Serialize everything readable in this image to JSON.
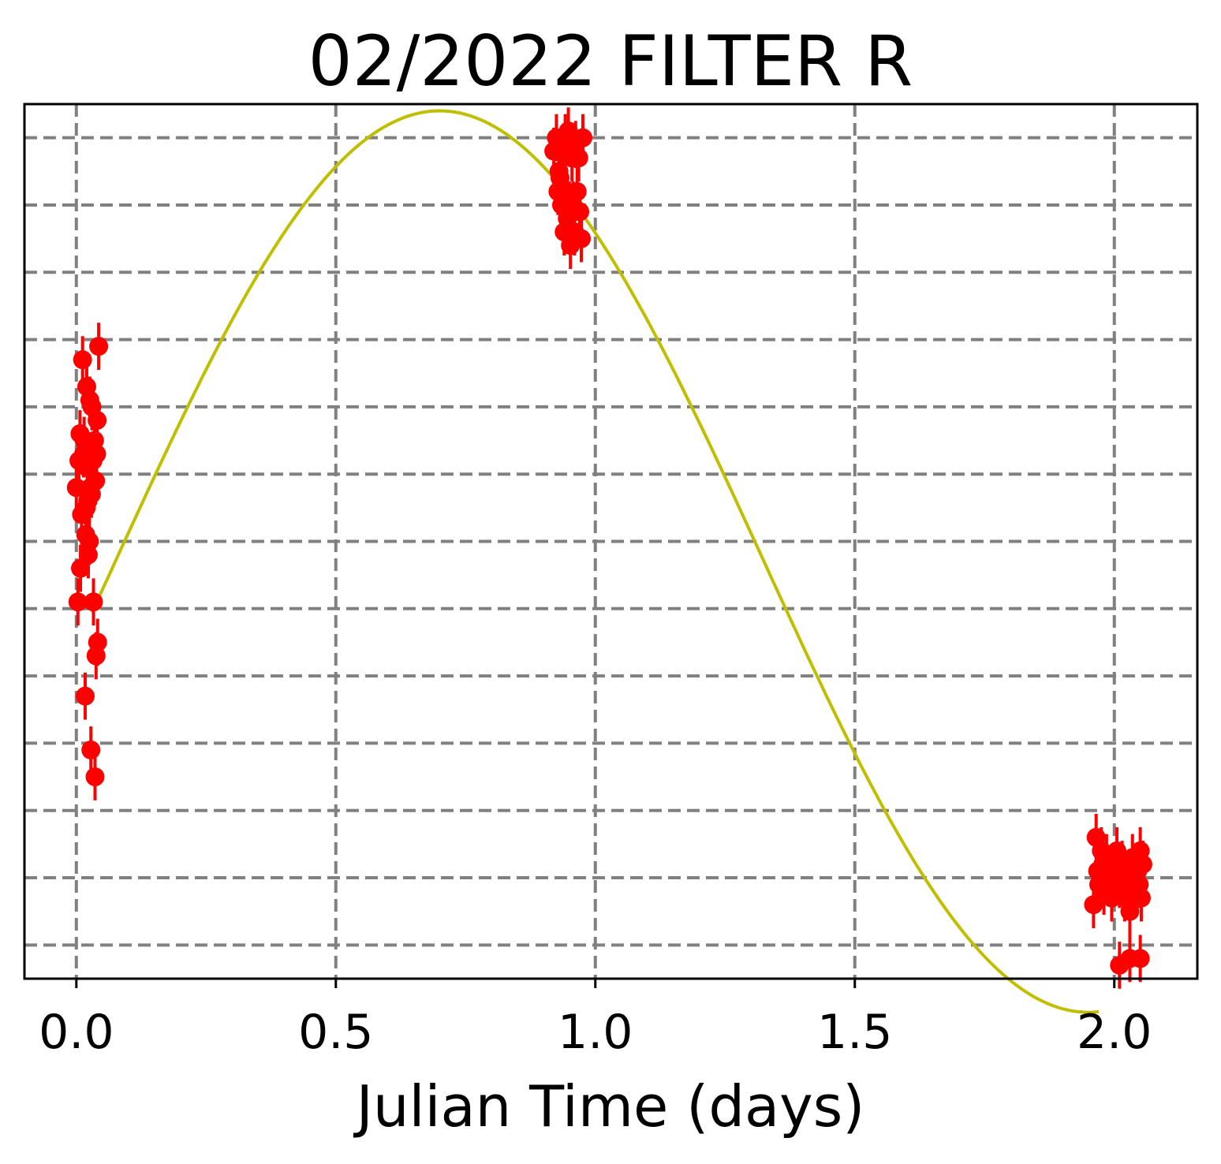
{
  "chart_data": {
    "type": "scatter",
    "title": "02/2022 FILTER R",
    "xlabel": "Julian Time (days)",
    "ylabel": "",
    "xlim": [
      -0.1,
      2.16
    ],
    "ylim": [
      0,
      13
    ],
    "x_ticks": [
      0.0,
      0.5,
      1.0,
      1.5,
      2.0
    ],
    "x_tick_labels": [
      "0.0",
      "0.5",
      "1.0",
      "1.5",
      "2.0"
    ],
    "y_grid_values": [
      0.5,
      1.5,
      2.5,
      3.5,
      4.5,
      5.5,
      6.5,
      7.5,
      8.5,
      9.5,
      10.5,
      11.5,
      12.5
    ],
    "y_tick_labels_visible": false,
    "grid": true,
    "grid_style": "dashed",
    "colors": {
      "points": "#ff0000",
      "fit_curve": "#bfbf00",
      "grid": "#808080"
    },
    "series": [
      {
        "kind": "errorbar-points",
        "x": [
          0.0,
          0.003,
          0.005,
          0.007,
          0.008,
          0.01,
          0.012,
          0.014,
          0.015,
          0.017,
          0.018,
          0.02,
          0.021,
          0.022,
          0.023,
          0.025,
          0.026,
          0.027,
          0.028,
          0.03,
          0.032,
          0.033,
          0.035,
          0.037,
          0.038,
          0.04,
          0.041,
          0.043,
          0.019,
          0.029,
          0.036,
          0.039,
          0.92,
          0.925,
          0.928,
          0.93,
          0.932,
          0.935,
          0.937,
          0.94,
          0.942,
          0.944,
          0.946,
          0.948,
          0.95,
          0.952,
          0.955,
          0.957,
          0.96,
          0.962,
          0.965,
          0.968,
          0.97,
          0.973,
          0.976,
          1.96,
          1.965,
          1.968,
          1.97,
          1.975,
          1.978,
          1.98,
          1.985,
          1.99,
          1.995,
          2.0,
          2.005,
          2.01,
          2.015,
          2.02,
          2.025,
          2.03,
          2.035,
          2.04,
          2.045,
          2.048,
          2.05,
          2.052,
          2.055,
          2.01,
          2.03,
          2.05
        ],
        "y": [
          7.3,
          5.6,
          7.7,
          8.1,
          6.1,
          6.9,
          9.2,
          7.8,
          8.0,
          4.2,
          6.6,
          8.8,
          7.6,
          7.1,
          6.3,
          6.5,
          8.6,
          7.3,
          3.4,
          8.5,
          7.7,
          5.6,
          8.0,
          7.4,
          4.8,
          8.3,
          5.0,
          9.4,
          7.0,
          7.2,
          3.0,
          7.8,
          12.3,
          12.5,
          11.7,
          12.0,
          11.9,
          11.5,
          12.3,
          11.1,
          12.5,
          11.7,
          11.3,
          12.6,
          11.5,
          10.9,
          12.2,
          11.5,
          11.1,
          12.4,
          11.7,
          12.2,
          11.4,
          11.0,
          12.5,
          1.1,
          2.1,
          1.6,
          1.4,
          1.9,
          1.7,
          1.3,
          1.8,
          1.5,
          1.2,
          1.6,
          1.9,
          1.4,
          1.7,
          1.2,
          1.5,
          1.0,
          1.8,
          1.3,
          1.6,
          1.4,
          1.9,
          1.2,
          1.7,
          0.2,
          0.3,
          0.3
        ],
        "y_err": 0.35
      },
      {
        "kind": "fit-curve",
        "function": "sine",
        "mean": 6.2,
        "amplitude": 6.7,
        "peak_x": 0.7,
        "period": 2.5,
        "x_range": [
          0.03,
          1.97
        ]
      }
    ]
  }
}
